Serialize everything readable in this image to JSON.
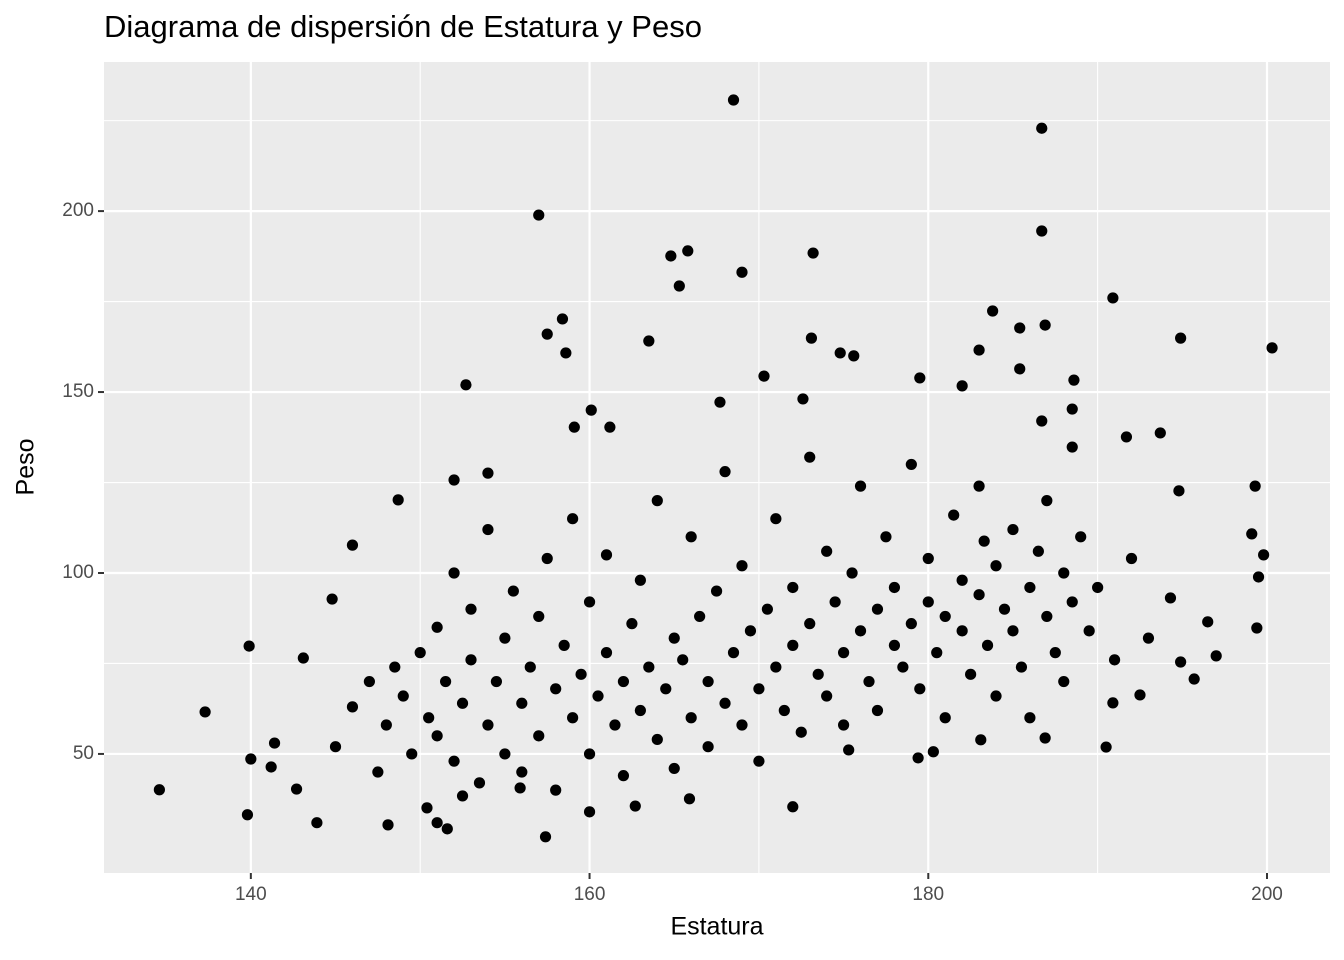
{
  "chart_data": {
    "type": "scatter",
    "title": "Diagrama de dispersión de Estatura y Peso",
    "x_label": "Estatura",
    "y_label": "Peso",
    "color": "#000000",
    "grid": true,
    "xlim": [
      131.33,
      203.72
    ],
    "ylim": [
      17.1,
      241.2
    ],
    "xticks": [
      140,
      160,
      180,
      200
    ],
    "yticks": [
      50,
      100,
      150,
      200
    ],
    "x_minor_grid": [
      150,
      170,
      190
    ],
    "y_minor_grid": [
      75,
      125,
      175,
      225
    ],
    "x": [
      134.6,
      137.3,
      139.9,
      140,
      139.8,
      141.2,
      141.4,
      142.7,
      143.1,
      143.9,
      144.8,
      146,
      148.7,
      148.1,
      152.7,
      152,
      154,
      157,
      157.5,
      158.4,
      158.6,
      157.4,
      159.1,
      160.1,
      161.2,
      163.5,
      164.8,
      165.8,
      165.3,
      168.5,
      169,
      167.7,
      170.3,
      172.6,
      173.2,
      173.1,
      174.8,
      175.6,
      179.5,
      183,
      183.8,
      182,
      185.4,
      185.4,
      186.7,
      186.7,
      186.9,
      190.9,
      194.9,
      200.3,
      199.3,
      199.1,
      199.8,
      199.5,
      199.4,
      197,
      196.5,
      195.7,
      194.9,
      194.8,
      193.7,
      191.7,
      190.5,
      190.9,
      192.5,
      188.5,
      188.5,
      188.6,
      186.7,
      183.3,
      179.4,
      180.3,
      172,
      160,
      151,
      151.6,
      150.4,
      152.5,
      155.9,
      162.7,
      165.9,
      175.3,
      183.1,
      186.9,
      194.3,
      145,
      146,
      147,
      147.5,
      148,
      148.5,
      149,
      149.5,
      150,
      150.5,
      151,
      151,
      151.5,
      152,
      152,
      152.5,
      153,
      153,
      153.5,
      154,
      154,
      154.5,
      155,
      155,
      155.5,
      156,
      156,
      156.5,
      157,
      157,
      157.5,
      158,
      158,
      158.5,
      159,
      159,
      159.5,
      160,
      160,
      160.5,
      161,
      161,
      161.5,
      162,
      162,
      162.5,
      163,
      163,
      163.5,
      164,
      164,
      164.5,
      165,
      165,
      165.5,
      166,
      166,
      166.5,
      167,
      167,
      167.5,
      168,
      168,
      168.5,
      169,
      169,
      169.5,
      170,
      170,
      170.5,
      171,
      171,
      171.5,
      172,
      172,
      172.5,
      173,
      173,
      173.5,
      174,
      174,
      174.5,
      175,
      175,
      175.5,
      176,
      176,
      176.5,
      177,
      177,
      177.5,
      178,
      178,
      178.5,
      179,
      179,
      179.5,
      180,
      180,
      180.5,
      181,
      181,
      181.5,
      182,
      182,
      182.5,
      183,
      183,
      183.5,
      184,
      184,
      184.5,
      185,
      185,
      185.5,
      186,
      186,
      186.5,
      187,
      187,
      187.5,
      188,
      188,
      188.5,
      189,
      189.5,
      190,
      191,
      192,
      193
    ],
    "values": [
      40.1,
      61.6,
      79.8,
      48.6,
      33.2,
      46.4,
      53,
      40.3,
      76.5,
      31,
      92.8,
      107.7,
      120.2,
      30.4,
      152,
      125.7,
      127.6,
      198.9,
      166,
      170.2,
      160.8,
      27.1,
      140.3,
      145,
      140.3,
      164.1,
      187.6,
      189,
      179.3,
      230.7,
      183.1,
      147.2,
      154.4,
      148.1,
      188.4,
      164.9,
      160.8,
      160,
      153.9,
      161.6,
      172.4,
      151.7,
      167.7,
      156.4,
      222.9,
      194.5,
      168.5,
      176,
      164.9,
      162.2,
      124,
      110.8,
      105,
      98.9,
      84.8,
      77.1,
      86.5,
      70.7,
      75.4,
      122.7,
      138.7,
      137.6,
      51.9,
      64.1,
      66.3,
      134.8,
      145.3,
      153.3,
      142,
      108.8,
      48.9,
      50.6,
      35.4,
      34,
      31,
      29.3,
      35.1,
      38.4,
      40.6,
      35.6,
      37.6,
      51.1,
      53.9,
      54.4,
      93.1,
      52,
      63,
      70,
      45,
      58,
      74,
      66,
      50,
      78,
      60,
      85,
      55,
      70,
      48,
      100,
      64,
      76,
      90,
      42,
      58,
      112,
      70,
      82,
      50,
      95,
      64,
      45,
      74,
      88,
      55,
      104,
      68,
      40,
      80,
      60,
      115,
      72,
      92,
      50,
      66,
      78,
      105,
      58,
      70,
      44,
      86,
      62,
      98,
      74,
      54,
      120,
      68,
      82,
      46,
      76,
      60,
      110,
      88,
      70,
      52,
      95,
      64,
      128,
      78,
      58,
      102,
      84,
      68,
      48,
      90,
      74,
      115,
      62,
      80,
      96,
      56,
      86,
      132,
      72,
      66,
      106,
      92,
      78,
      58,
      100,
      84,
      124,
      70,
      90,
      62,
      110,
      80,
      96,
      74,
      86,
      130,
      68,
      92,
      104,
      78,
      88,
      60,
      116,
      84,
      98,
      72,
      94,
      124,
      80,
      102,
      66,
      90,
      84,
      112,
      74,
      96,
      60,
      106,
      88,
      120,
      78,
      100,
      70,
      92,
      110,
      84,
      96,
      76,
      104,
      82
    ]
  }
}
